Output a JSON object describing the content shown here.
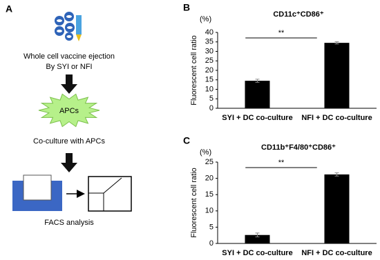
{
  "diagram": {
    "panel_label": "A",
    "step1_line1": "Whole cell vaccine ejection",
    "step1_line2": "By SYI or NFI",
    "cell_label": "APCs",
    "step2": "Co-culture with APCs",
    "step3": "FACS analysis"
  },
  "chart_data": [
    {
      "type": "bar",
      "panel_label": "B",
      "title": "CD11c⁺CD86⁺",
      "y_unit": "(%)",
      "y_label": "Fluorescent cell ratio",
      "categories": [
        "SYI + DC co-culture",
        "NFI + DC co-culture"
      ],
      "values": [
        14.5,
        34.5
      ],
      "errors": [
        0.8,
        0.6
      ],
      "color": "#000000",
      "annotation": "**",
      "ylim": [
        0,
        40
      ],
      "yticks": [
        0,
        5,
        10,
        15,
        20,
        25,
        30,
        35,
        40
      ],
      "grid": false
    },
    {
      "type": "bar",
      "panel_label": "C",
      "title": "CD11b⁺F4/80⁺CD86⁺",
      "y_unit": "(%)",
      "y_label": "Fluorescent cell ratio",
      "categories": [
        "SYI + DC co-culture",
        "NFI + DC co-culture"
      ],
      "values": [
        2.6,
        21.2
      ],
      "errors": [
        0.6,
        0.5
      ],
      "color": "#000000",
      "annotation": "**",
      "ylim": [
        0,
        25
      ],
      "yticks": [
        0,
        5,
        10,
        15,
        20,
        25
      ],
      "grid": false
    }
  ]
}
